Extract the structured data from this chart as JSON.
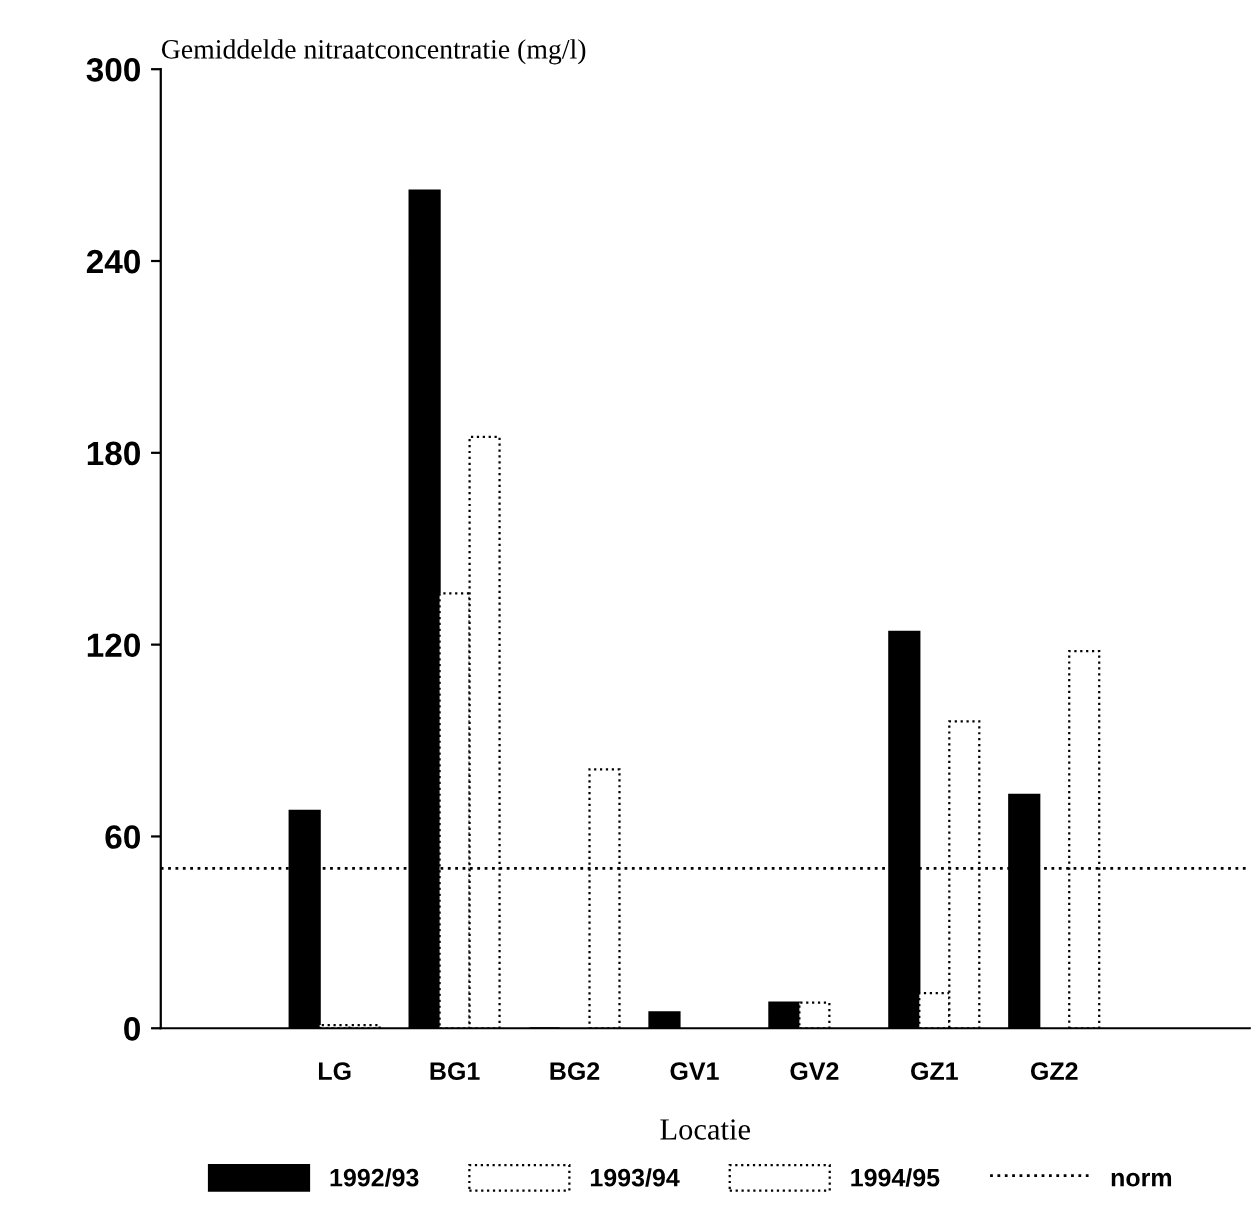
{
  "chart_data": {
    "type": "bar",
    "ylabel": "Gemiddelde nitraatconcentratie (mg/l)",
    "xlabel": "Locatie",
    "categories": [
      "LG",
      "BG1",
      "BG2",
      "GV1",
      "GV2",
      "GZ1",
      "GZ2"
    ],
    "series": [
      {
        "name": "1992/93",
        "color": "#000000",
        "line_style": "solid",
        "values": [
          68,
          262,
          0,
          5,
          8,
          124,
          73
        ]
      },
      {
        "name": "1993/94",
        "color": "#ffffff",
        "line_style": "dotted",
        "values": [
          1,
          136,
          null,
          null,
          8,
          11,
          null
        ]
      },
      {
        "name": "1994/95",
        "color": "#ffffff",
        "line_style": "dotted",
        "values": [
          1,
          185,
          81,
          null,
          null,
          96,
          118
        ]
      }
    ],
    "ylim": [
      0,
      300
    ],
    "yticks": [
      0,
      60,
      120,
      180,
      240,
      300
    ],
    "ref_lines": [
      {
        "axis": "y",
        "value": 50,
        "label": "norm",
        "color": "#000000",
        "line_style": "dotted"
      }
    ],
    "grid": false,
    "legend": "bottom"
  }
}
